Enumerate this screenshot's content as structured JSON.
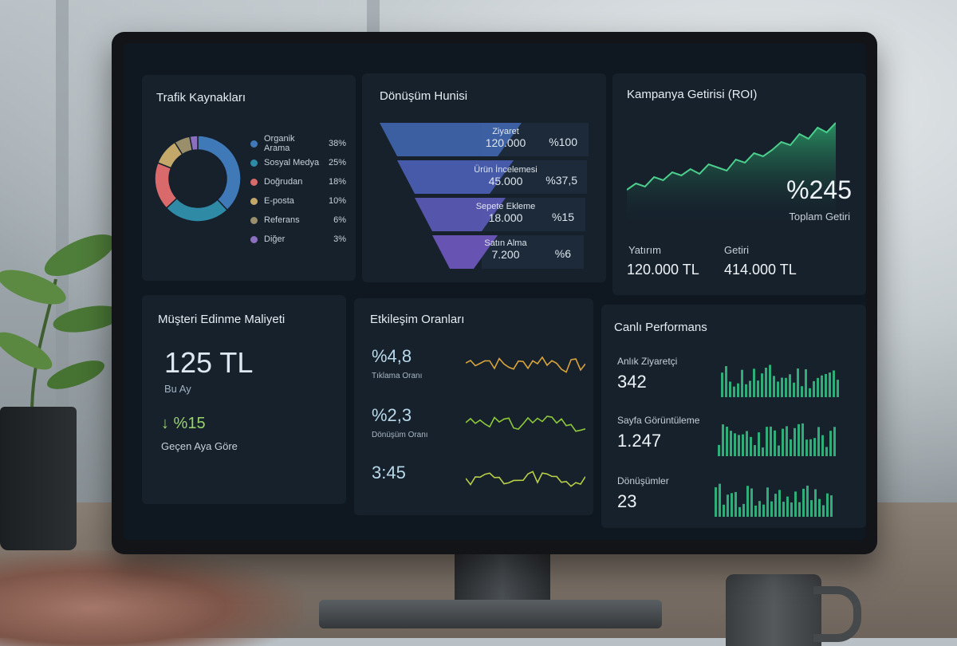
{
  "traffic": {
    "title": "Trafik Kaynakları",
    "items": [
      {
        "label": "Organik Arama",
        "pct": "38%",
        "value": 38,
        "color": "#3f79b8"
      },
      {
        "label": "Sosyal Medya",
        "pct": "25%",
        "value": 25,
        "color": "#2f8aa6"
      },
      {
        "label": "Doğrudan",
        "pct": "18%",
        "value": 18,
        "color": "#d9696a"
      },
      {
        "label": "E-posta",
        "pct": "10%",
        "value": 10,
        "color": "#c4a86a"
      },
      {
        "label": "Referans",
        "pct": "6%",
        "value": 6,
        "color": "#9a8f6a"
      },
      {
        "label": "Diğer",
        "pct": "3%",
        "value": 3,
        "color": "#8c6fc0"
      }
    ]
  },
  "funnel": {
    "title": "Dönüşüm Hunisi",
    "stages": [
      {
        "label": "Ziyaret",
        "value": "120.000",
        "pct": "%100",
        "color": "#3e63a8"
      },
      {
        "label": "Ürün İncelemesi",
        "value": "45.000",
        "pct": "%37,5",
        "color": "#4a5db0"
      },
      {
        "label": "Sepete Ekleme",
        "value": "18.000",
        "pct": "%15",
        "color": "#5a58b3"
      },
      {
        "label": "Satın Alma",
        "value": "7.200",
        "pct": "%6",
        "color": "#6b56b8"
      }
    ]
  },
  "roi": {
    "title": "Kampanya Getirisi (ROI)",
    "value": "%245",
    "sub": "Toplam Getiri",
    "investment_label": "Yatırım",
    "investment_value": "120.000 TL",
    "return_label": "Getiri",
    "return_value": "414.000 TL"
  },
  "cac": {
    "title": "Müşteri Edinme Maliyeti",
    "value": "125 TL",
    "period": "Bu Ay",
    "change": "↓ %15",
    "change_label": "Geçen Aya Göre"
  },
  "engagement": {
    "title": "Etkileşim Oranları",
    "metrics": [
      {
        "value": "%4,8",
        "label": "Tıklama Oranı",
        "color": "#d7a33b"
      },
      {
        "value": "%2,3",
        "label": "Dönüşüm Oranı",
        "color": "#8ec93a"
      },
      {
        "value": "3:45",
        "label": "",
        "color": "#b8cf45"
      }
    ]
  },
  "live": {
    "title": "Canlı Performans",
    "metrics": [
      {
        "label": "Anlık Ziyaretçi",
        "value": "342"
      },
      {
        "label": "Sayfa Görüntüleme",
        "value": "1.247"
      },
      {
        "label": "Dönüşümler",
        "value": "23"
      }
    ],
    "bar_color": "#2fae7a"
  }
}
